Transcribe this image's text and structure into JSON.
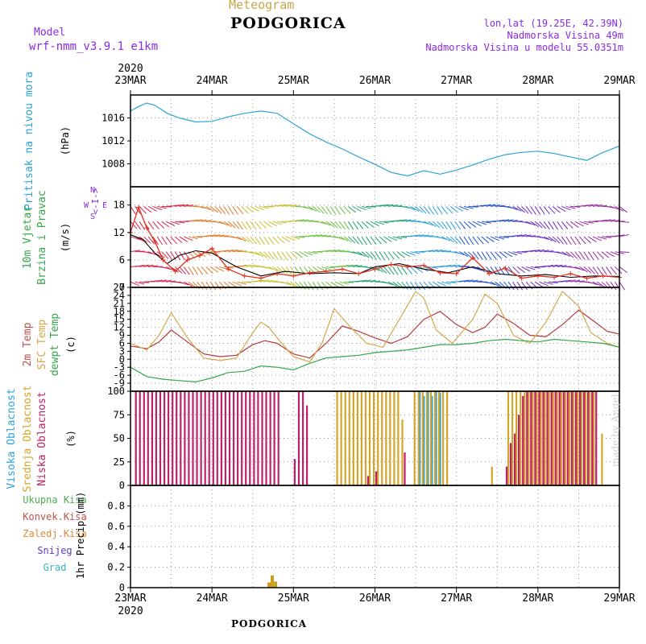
{
  "header": {
    "meteogram": "Meteogram",
    "city": "PODGORICA",
    "model_label": "Model",
    "model_name": "wrf-nmm_v3.9.1 e1km",
    "lonlat": "lon,lat (19.25E, 42.39N)",
    "altitude": "Nadmorska Visina 49m",
    "altitude_model": "Nadmorska Visina u modelu 55.0351m"
  },
  "footer": {
    "city": "PODGORICA",
    "watermark": "made by Angel"
  },
  "chart_data": [
    {
      "type": "line",
      "panel": "pressure",
      "ylabels": [
        "Pritisak na nivou mora",
        "(hPa)"
      ],
      "yticks": [
        1008,
        1012,
        1016
      ],
      "ylim": [
        1004,
        1020
      ],
      "x_days": [
        "23MAR",
        "24MAR",
        "25MAR",
        "26MAR",
        "27MAR",
        "28MAR",
        "29MAR"
      ],
      "x_year": "2020",
      "color": "#2ba3d6",
      "x": [
        0,
        0.1,
        0.2,
        0.3,
        0.45,
        0.6,
        0.8,
        1.0,
        1.2,
        1.4,
        1.6,
        1.8,
        2.0,
        2.2,
        2.4,
        2.6,
        2.8,
        3.0,
        3.2,
        3.4,
        3.6,
        3.8,
        4.0,
        4.2,
        4.4,
        4.6,
        4.8,
        5.0,
        5.2,
        5.4,
        5.6,
        5.8,
        6.0
      ],
      "values": [
        1017.2,
        1018.0,
        1018.6,
        1018.2,
        1016.8,
        1016.0,
        1015.3,
        1015.4,
        1016.2,
        1016.8,
        1017.2,
        1016.8,
        1015.0,
        1013.2,
        1011.8,
        1010.6,
        1009.2,
        1007.9,
        1006.5,
        1005.9,
        1006.8,
        1006.2,
        1006.9,
        1007.8,
        1008.8,
        1009.6,
        1010.0,
        1010.2,
        1009.8,
        1009.2,
        1008.6,
        1010.0,
        1011.1
      ]
    },
    {
      "type": "line",
      "panel": "wind",
      "ylabels": [
        "10m Vjetar",
        "Brzina i Pravac",
        "(m/s)"
      ],
      "direction_legend": [
        "N",
        "<-I->",
        "W",
        "E",
        "S"
      ],
      "yticks": [
        0,
        6,
        12,
        18
      ],
      "ylim": [
        0,
        22
      ],
      "series": [
        {
          "color": "#000000",
          "x": [
            0,
            0.15,
            0.3,
            0.45,
            0.6,
            0.8,
            1.0,
            1.3,
            1.6,
            1.9,
            2.2,
            2.5,
            2.8,
            3.0,
            3.3,
            3.6,
            3.9,
            4.2,
            4.5,
            4.8,
            5.1,
            5.4,
            5.7,
            6.0
          ],
          "values": [
            11.5,
            10.5,
            7.5,
            5.2,
            7.0,
            8.0,
            7.5,
            4.5,
            2.5,
            3.5,
            3.0,
            3.2,
            3.0,
            4.5,
            5.2,
            4.0,
            3.2,
            4.5,
            3.0,
            2.5,
            2.8,
            2.2,
            2.5,
            2.4
          ]
        },
        {
          "color": "#e0301e",
          "x": [
            0,
            0.1,
            0.2,
            0.3,
            0.4,
            0.55,
            0.7,
            0.85,
            1.0,
            1.2,
            1.4,
            1.6,
            1.8,
            2.0,
            2.2,
            2.4,
            2.6,
            2.8,
            3.0,
            3.2,
            3.4,
            3.6,
            3.8,
            4.0,
            4.2,
            4.4,
            4.6,
            4.8,
            5.0,
            5.2,
            5.4,
            5.6,
            5.8,
            6.0
          ],
          "values": [
            12.0,
            17.5,
            13.0,
            10.0,
            6.0,
            3.5,
            6.0,
            7.0,
            8.5,
            4.0,
            2.5,
            2.0,
            3.0,
            2.5,
            3.2,
            3.5,
            4.0,
            3.0,
            4.0,
            5.0,
            4.5,
            4.8,
            3.2,
            3.0,
            6.5,
            3.0,
            4.2,
            2.0,
            2.5,
            2.2,
            3.0,
            2.0,
            2.5,
            2.2
          ]
        }
      ]
    },
    {
      "type": "line",
      "panel": "temperature",
      "ylabels": [
        "2m Temp",
        "SFC Temp",
        "dewpt Temp",
        "(c)"
      ],
      "yticks": [
        -9,
        -6,
        -3,
        0,
        3,
        6,
        9,
        12,
        15,
        18,
        21,
        24,
        27
      ],
      "ylim": [
        -12,
        27
      ],
      "series": [
        {
          "name": "2m Temp",
          "color": "#b8383a",
          "x": [
            0,
            0.2,
            0.35,
            0.5,
            0.7,
            0.9,
            1.1,
            1.3,
            1.5,
            1.65,
            1.8,
            2.0,
            2.2,
            2.4,
            2.6,
            2.8,
            3.0,
            3.2,
            3.4,
            3.6,
            3.8,
            4.0,
            4.2,
            4.35,
            4.5,
            4.7,
            4.9,
            5.1,
            5.3,
            5.5,
            5.7,
            5.85,
            6.0
          ],
          "values": [
            5.0,
            4.0,
            6.5,
            11.0,
            6.5,
            2.0,
            1.0,
            1.5,
            5.5,
            7.0,
            6.0,
            2.0,
            0.5,
            6.0,
            12.5,
            10.5,
            8.0,
            6.0,
            8.5,
            15.0,
            18.0,
            13.0,
            10.0,
            12.0,
            17.0,
            13.5,
            9.0,
            8.5,
            13.0,
            18.5,
            14.0,
            10.5,
            9.5
          ]
        },
        {
          "name": "SFC Temp",
          "color": "#d4a84b",
          "x": [
            0,
            0.2,
            0.35,
            0.5,
            0.7,
            0.9,
            1.1,
            1.3,
            1.5,
            1.6,
            1.7,
            1.8,
            2.0,
            2.2,
            2.35,
            2.5,
            2.7,
            2.9,
            3.1,
            3.3,
            3.5,
            3.6,
            3.75,
            3.95,
            4.2,
            4.35,
            4.5,
            4.7,
            4.9,
            5.1,
            5.3,
            5.5,
            5.65,
            5.85,
            6.0
          ],
          "values": [
            6.0,
            3.5,
            9.0,
            17.5,
            8.0,
            0.5,
            -0.5,
            0.5,
            10.0,
            14.0,
            12.0,
            8.0,
            1.0,
            -1.0,
            6.0,
            19.0,
            12.0,
            6.0,
            4.5,
            15.0,
            25.5,
            23.0,
            11.0,
            6.0,
            15.0,
            24.5,
            21.0,
            9.0,
            6.0,
            14.0,
            25.5,
            20.0,
            10.0,
            6.0,
            4.5
          ]
        },
        {
          "name": "dewpt Temp",
          "color": "#35a64a",
          "x": [
            0,
            0.2,
            0.4,
            0.6,
            0.8,
            1.0,
            1.2,
            1.4,
            1.6,
            1.8,
            2.0,
            2.2,
            2.4,
            2.6,
            2.8,
            3.0,
            3.2,
            3.4,
            3.6,
            3.8,
            4.0,
            4.2,
            4.4,
            4.6,
            4.8,
            5.0,
            5.2,
            5.4,
            5.6,
            5.8,
            6.0
          ],
          "values": [
            -3.0,
            -6.5,
            -7.5,
            -8.0,
            -8.5,
            -7.0,
            -5.0,
            -4.5,
            -2.5,
            -3.0,
            -4.0,
            -1.5,
            0.5,
            1.0,
            1.5,
            2.5,
            3.0,
            3.5,
            4.5,
            5.5,
            5.5,
            6.0,
            7.0,
            7.5,
            7.0,
            6.5,
            7.5,
            7.0,
            6.5,
            6.0,
            4.5
          ]
        }
      ]
    },
    {
      "type": "bar",
      "panel": "cloud",
      "ylabels": [
        "Visoka Oblacnost",
        "Srednja Oblacnost",
        "Niska Oblacnost",
        "(%)"
      ],
      "yticks": [
        0,
        25,
        50,
        75,
        100
      ],
      "ylim": [
        0,
        100
      ],
      "series": [
        {
          "name": "Visoka Oblacnost",
          "color": "#29a3dc",
          "x": [
            3.55,
            3.6,
            3.65,
            3.7,
            3.75,
            3.8
          ],
          "values": [
            100,
            95,
            100,
            95,
            100,
            98
          ]
        },
        {
          "name": "Srednja Oblacnost",
          "color": "#d4a52a",
          "x": [
            2.55,
            2.6,
            2.65,
            2.7,
            2.75,
            2.8,
            2.85,
            2.9,
            2.95,
            3.0,
            3.05,
            3.1,
            3.15,
            3.2,
            3.25,
            3.3,
            3.35,
            3.5,
            3.55,
            3.6,
            3.65,
            3.7,
            3.75,
            3.8,
            3.85,
            3.9,
            4.65,
            4.7,
            4.75,
            4.8,
            4.85,
            4.9,
            4.95,
            5.0,
            5.05,
            5.1,
            5.15,
            5.2,
            5.25,
            5.3,
            5.35,
            5.4,
            5.45,
            5.5,
            5.55,
            5.6,
            5.65,
            5.7,
            5.8,
            4.45
          ],
          "values": [
            100,
            100,
            100,
            100,
            100,
            100,
            100,
            100,
            100,
            100,
            100,
            100,
            100,
            100,
            100,
            100,
            70,
            100,
            100,
            100,
            100,
            100,
            100,
            100,
            100,
            100,
            100,
            100,
            100,
            100,
            100,
            100,
            100,
            100,
            100,
            100,
            100,
            100,
            100,
            100,
            100,
            100,
            100,
            100,
            100,
            100,
            100,
            100,
            55,
            20
          ]
        },
        {
          "name": "Niska Oblacnost",
          "color": "#c0206a",
          "x": [
            0.05,
            0.1,
            0.15,
            0.2,
            0.25,
            0.3,
            0.35,
            0.4,
            0.45,
            0.5,
            0.55,
            0.6,
            0.65,
            0.7,
            0.75,
            0.8,
            0.85,
            0.9,
            0.95,
            1.0,
            1.05,
            1.1,
            1.15,
            1.2,
            1.25,
            1.3,
            1.35,
            1.4,
            1.45,
            1.5,
            1.55,
            1.6,
            1.65,
            1.7,
            1.75,
            1.8,
            2.0,
            2.05,
            2.1,
            2.15,
            2.9,
            3.0,
            3.35,
            4.6,
            4.65,
            4.7,
            4.75,
            4.8,
            4.85,
            4.9,
            4.95,
            5.0,
            5.05,
            5.1,
            5.15,
            5.2,
            5.25,
            5.3,
            5.35,
            5.4,
            5.45,
            5.5,
            5.55,
            5.6,
            5.65,
            5.7
          ],
          "values": [
            100,
            100,
            100,
            100,
            100,
            100,
            100,
            100,
            100,
            100,
            100,
            100,
            100,
            100,
            100,
            100,
            100,
            100,
            100,
            100,
            100,
            100,
            100,
            100,
            100,
            100,
            100,
            100,
            100,
            100,
            100,
            100,
            100,
            100,
            100,
            100,
            28,
            100,
            100,
            85,
            10,
            15,
            35,
            20,
            45,
            55,
            75,
            95,
            100,
            100,
            100,
            100,
            100,
            100,
            100,
            100,
            100,
            100,
            100,
            100,
            100,
            100,
            100,
            100,
            100,
            100
          ]
        }
      ]
    },
    {
      "type": "bar",
      "panel": "precip",
      "legend": [
        "Ukupna Kisa",
        "Konvek.Kisa",
        "Zaledj.Kisa",
        "Snijeg",
        "Grad"
      ],
      "legend_colors": [
        "#4caf50",
        "#c0504d",
        "#d98c3a",
        "#5b3cc4",
        "#35b5b5"
      ],
      "ylabel": "1hr Precip (mm)",
      "yticks": [
        0,
        0.2,
        0.4,
        0.6,
        0.8
      ],
      "ylim": [
        0,
        1.0
      ],
      "x": [
        1.7,
        1.74,
        1.78
      ],
      "values": [
        0.05,
        0.12,
        0.06
      ],
      "bar_color": "#c8a020",
      "x_days": [
        "23MAR",
        "24MAR",
        "25MAR",
        "26MAR",
        "27MAR",
        "28MAR",
        "29MAR"
      ],
      "x_year": "2020"
    }
  ]
}
